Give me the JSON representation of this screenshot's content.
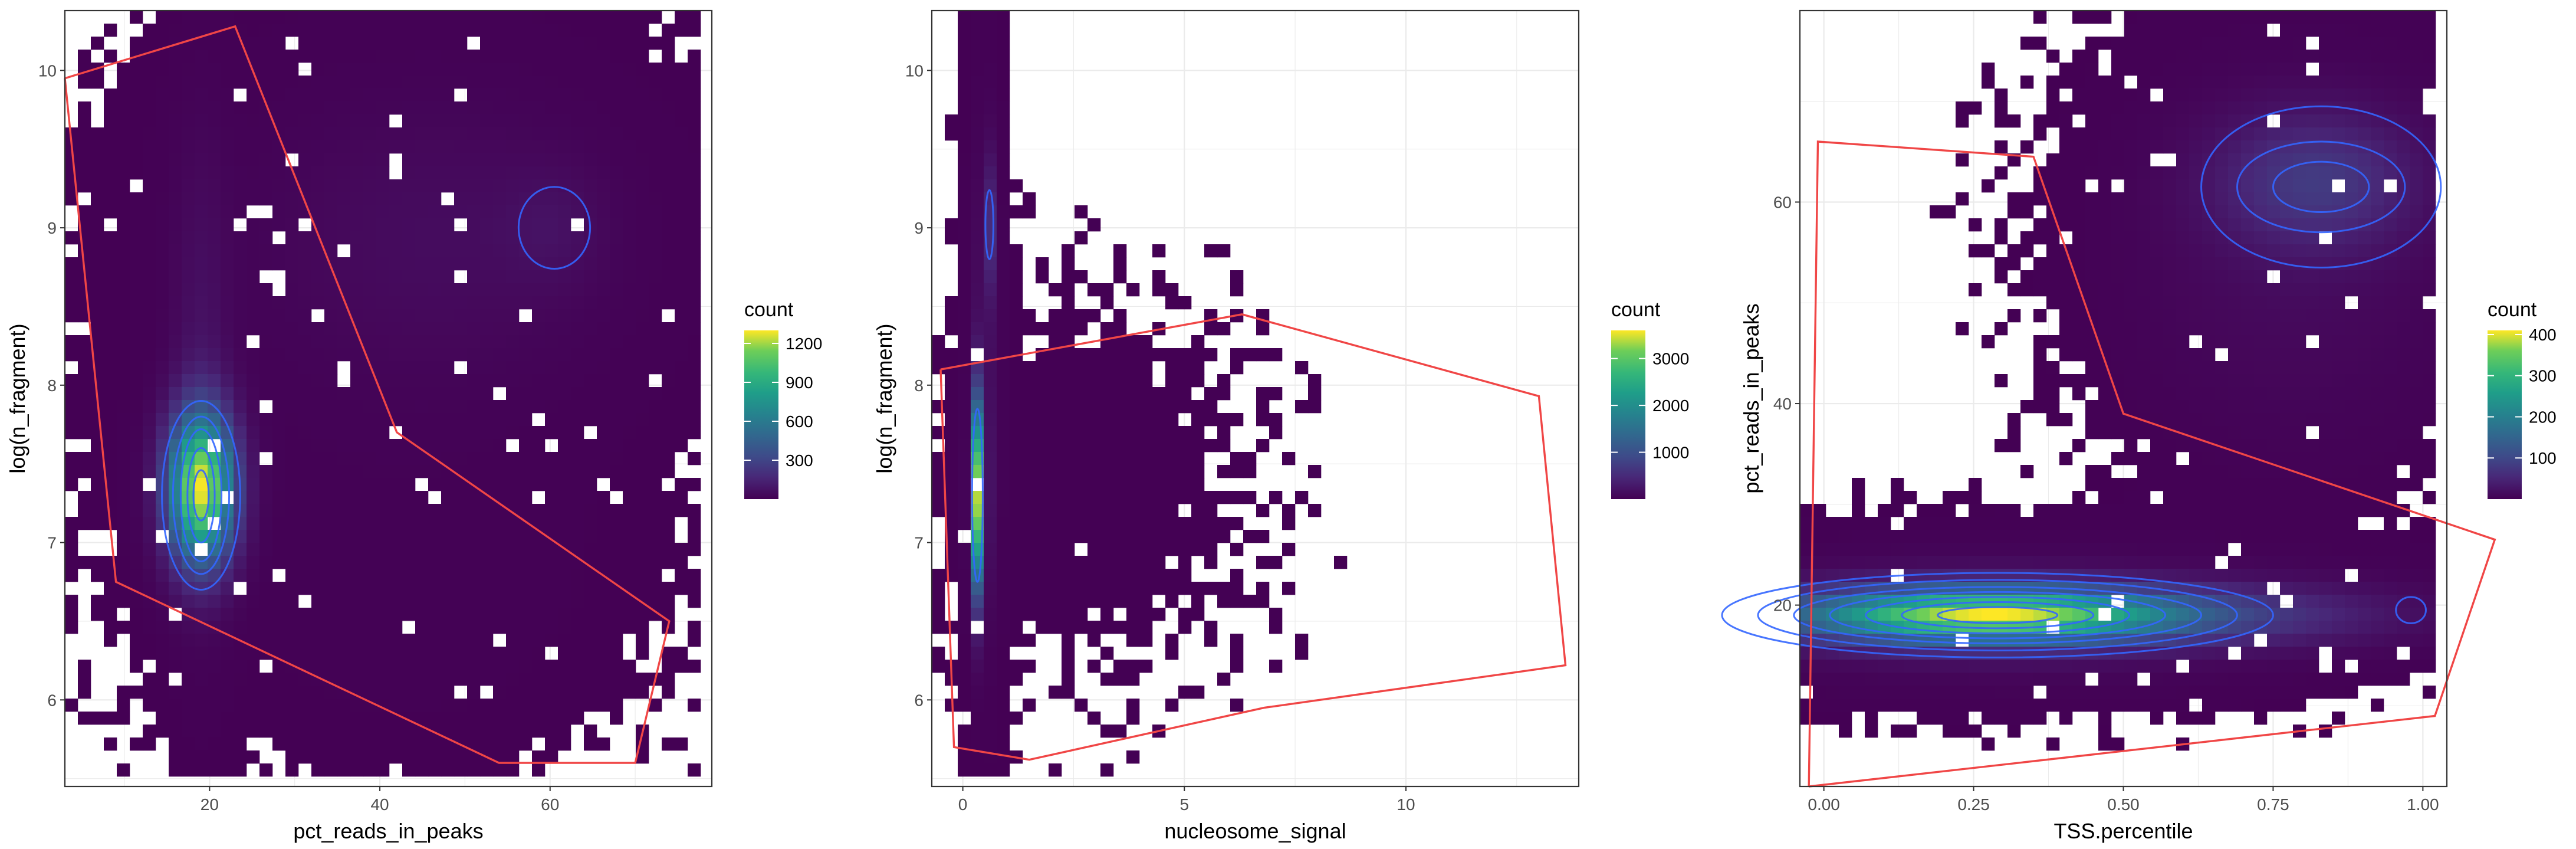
{
  "colors": {
    "panel_background": "#ffffff",
    "panel_border": "#333333",
    "grid_major": "#ebebeb",
    "gate": "#f04646",
    "contour": "#3366ff",
    "viridis_low": "#440154",
    "viridis_high": "#fde725"
  },
  "chart_data": [
    {
      "type": "heatmap",
      "xlabel": "pct_reads_in_peaks",
      "ylabel": "log(n_fragment)",
      "xlim": [
        3,
        79
      ],
      "ylim": [
        5.45,
        10.38
      ],
      "xticks": [
        20,
        40,
        60
      ],
      "yticks": [
        6,
        7,
        8,
        9,
        10
      ],
      "grid": true,
      "legend": {
        "title": "count",
        "placement": "right",
        "breaks": [
          300,
          600,
          900,
          1200
        ],
        "max": 1300
      },
      "density_clusters": [
        {
          "cx": 19,
          "cy": 7.35,
          "sx": 2.6,
          "sy": 0.32,
          "peak": 1250,
          "rho": 0
        },
        {
          "cx": 19,
          "cy": 8.1,
          "sx": 2.2,
          "sy": 0.9,
          "peak": 60,
          "rho": 0
        },
        {
          "cx": 47,
          "cy": 8.95,
          "sx": 13,
          "sy": 0.55,
          "peak": 40,
          "rho": 0
        },
        {
          "cx": 60,
          "cy": 9.0,
          "sx": 4,
          "sy": 0.25,
          "peak": 45,
          "rho": 0
        },
        {
          "cx": 40,
          "cy": 8.3,
          "sx": 18,
          "sy": 1.3,
          "peak": 6,
          "rho": 0
        },
        {
          "cx": 46,
          "cy": 6.6,
          "sx": 14,
          "sy": 0.6,
          "peak": 2,
          "rho": 0
        }
      ],
      "contours": [
        {
          "cx": 19,
          "cy": 7.3,
          "rx": [
            0.9,
            1.6,
            2.4,
            3.3,
            4.6
          ],
          "ry": [
            0.16,
            0.3,
            0.42,
            0.5,
            0.6
          ],
          "rot": 0
        },
        {
          "cx": 60.5,
          "cy": 9.0,
          "rx": [
            4.2
          ],
          "ry": [
            0.26
          ],
          "rot": 0
        }
      ],
      "gate": [
        [
          3,
          9.95
        ],
        [
          23,
          10.28
        ],
        [
          42,
          7.7
        ],
        [
          74,
          6.5
        ],
        [
          70,
          5.6
        ],
        [
          54,
          5.6
        ],
        [
          9,
          6.75
        ],
        [
          3,
          9.95
        ]
      ]
    },
    {
      "type": "heatmap",
      "xlabel": "nucleosome_signal",
      "ylabel": "log(n_fragment)",
      "xlim": [
        -0.7,
        13.9
      ],
      "ylim": [
        5.45,
        10.38
      ],
      "xticks": [
        0,
        5,
        10
      ],
      "yticks": [
        6,
        7,
        8,
        9,
        10
      ],
      "grid": true,
      "legend": {
        "title": "count",
        "placement": "right",
        "breaks": [
          1000,
          2000,
          3000
        ],
        "max": 3600
      },
      "density_clusters": [
        {
          "cx": 0.35,
          "cy": 7.3,
          "sx": 0.1,
          "sy": 0.4,
          "peak": 3400,
          "rho": 0
        },
        {
          "cx": 0.6,
          "cy": 9.0,
          "sx": 0.1,
          "sy": 0.3,
          "peak": 420,
          "rho": 0
        },
        {
          "cx": 0.5,
          "cy": 8.1,
          "sx": 0.22,
          "sy": 1.0,
          "peak": 140,
          "rho": 0
        },
        {
          "cx": 2.6,
          "cy": 7.4,
          "sx": 2.3,
          "sy": 0.7,
          "peak": 2,
          "rho": 0
        }
      ],
      "contours": [
        {
          "cx": 0.33,
          "cy": 7.3,
          "rx": [
            0.12
          ],
          "ry": [
            0.55
          ],
          "rot": 0
        },
        {
          "cx": 0.6,
          "cy": 9.02,
          "rx": [
            0.09
          ],
          "ry": [
            0.22
          ],
          "rot": 0
        }
      ],
      "gate": [
        [
          -0.5,
          8.1
        ],
        [
          6.3,
          8.45
        ],
        [
          13,
          7.93
        ],
        [
          13.6,
          6.22
        ],
        [
          6.8,
          5.95
        ],
        [
          1.5,
          5.62
        ],
        [
          -0.2,
          5.7
        ],
        [
          -0.5,
          8.1
        ]
      ]
    },
    {
      "type": "heatmap",
      "xlabel": "TSS.percentile",
      "ylabel": "pct_reads_in_peaks",
      "xlim": [
        -0.04,
        1.04
      ],
      "ylim": [
        2,
        79
      ],
      "xticks": [
        0.0,
        0.25,
        0.5,
        0.75,
        1.0
      ],
      "xtick_labels": [
        "0.00",
        "0.25",
        "0.50",
        "0.75",
        "1.00"
      ],
      "yticks": [
        20,
        40,
        60
      ],
      "grid": true,
      "legend": {
        "title": "count",
        "placement": "right",
        "breaks": [
          100,
          200,
          300,
          400
        ],
        "max": 410
      },
      "density_clusters": [
        {
          "cx": 0.28,
          "cy": 19,
          "sx": 0.22,
          "sy": 1.8,
          "peak": 390,
          "rho": 0
        },
        {
          "cx": 0.75,
          "cy": 19,
          "sx": 0.18,
          "sy": 2.2,
          "peak": 35,
          "rho": 0
        },
        {
          "cx": 0.82,
          "cy": 62,
          "sx": 0.11,
          "sy": 4.5,
          "peak": 70,
          "rho": 0
        },
        {
          "cx": 0.78,
          "cy": 55,
          "sx": 0.18,
          "sy": 12,
          "peak": 12,
          "rho": 0
        },
        {
          "cx": 0.3,
          "cy": 19,
          "sx": 0.3,
          "sy": 4,
          "peak": 20,
          "rho": 0
        }
      ],
      "contours": [
        {
          "cx": 0.29,
          "cy": 19,
          "rx": [
            0.1,
            0.16,
            0.22,
            0.28,
            0.34,
            0.4,
            0.46
          ],
          "ry": [
            0.8,
            1.3,
            1.8,
            2.3,
            2.8,
            3.5,
            4.2
          ],
          "rot": 0
        },
        {
          "cx": 0.83,
          "cy": 61.5,
          "rx": [
            0.08,
            0.14,
            0.2
          ],
          "ry": [
            2.5,
            4.5,
            8
          ],
          "rot": 0
        },
        {
          "cx": 0.98,
          "cy": 19.5,
          "rx": [
            0.025
          ],
          "ry": [
            1.3
          ],
          "rot": 0
        }
      ],
      "gate": [
        [
          -0.025,
          2
        ],
        [
          -0.01,
          66
        ],
        [
          0.35,
          64.5
        ],
        [
          0.5,
          39
        ],
        [
          1.12,
          26.5
        ],
        [
          1.02,
          9
        ],
        [
          -0.025,
          2
        ]
      ]
    }
  ]
}
